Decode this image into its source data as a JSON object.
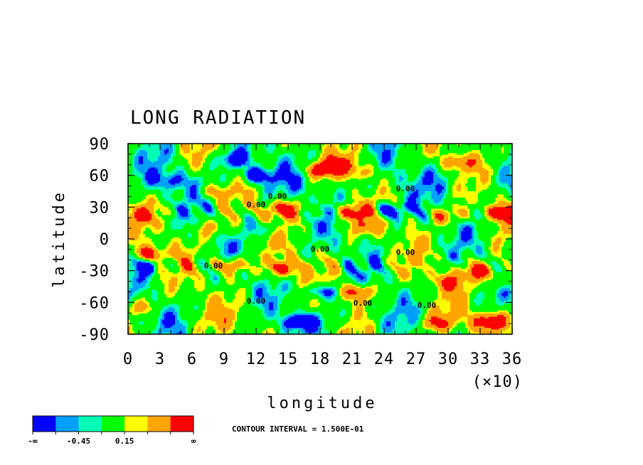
{
  "chart_data": {
    "type": "heatmap",
    "title": "LONG RADIATION",
    "xlabel": "longitude",
    "ylabel": "latitude",
    "x_multiplier": "(×10)",
    "xlim": [
      0,
      36
    ],
    "ylim": [
      -90,
      90
    ],
    "x_ticks": [
      "0",
      "3",
      "6",
      "9",
      "12",
      "15",
      "18",
      "21",
      "24",
      "27",
      "30",
      "33",
      "36"
    ],
    "y_ticks": [
      "90",
      "60",
      "30",
      "0",
      "-30",
      "-60",
      "-90"
    ],
    "contour_interval_text": "CONTOUR INTERVAL = 1.500E-01",
    "contour_labels": [
      {
        "text": "0.00",
        "lon": 14,
        "lat": 38
      },
      {
        "text": "0.00",
        "lon": 12,
        "lat": 30
      },
      {
        "text": "0.00",
        "lon": 26,
        "lat": 45
      },
      {
        "text": "0.00",
        "lon": 18,
        "lat": -12
      },
      {
        "text": "0.00",
        "lon": 26,
        "lat": -15
      },
      {
        "text": "0.00",
        "lon": 8,
        "lat": -28
      },
      {
        "text": "0.00",
        "lon": 12,
        "lat": -61
      },
      {
        "text": "0.00",
        "lon": 22,
        "lat": -63
      },
      {
        "text": "0.00",
        "lon": 28,
        "lat": -65
      }
    ],
    "colorbar": {
      "colors": [
        "#0000ff",
        "#00a0ff",
        "#00ffb4",
        "#00ff00",
        "#ffff00",
        "#ffa500",
        "#ff0000"
      ],
      "labels": [
        "-∞",
        "-0.45",
        "0.15",
        "∞"
      ]
    },
    "features": [
      {
        "lon": 18,
        "lat": 65,
        "value": 0.9
      },
      {
        "lon": 20,
        "lat": 70,
        "value": 0.55
      },
      {
        "lon": 22,
        "lat": 62,
        "value": 0.45
      },
      {
        "lon": 31,
        "lat": 72,
        "value": 0.55
      },
      {
        "lon": 10,
        "lat": 75,
        "value": -0.75
      },
      {
        "lon": 12,
        "lat": 60,
        "value": -0.75
      },
      {
        "lon": 4,
        "lat": 55,
        "value": -0.4
      },
      {
        "lon": 8,
        "lat": 45,
        "value": 0.45
      },
      {
        "lon": 14.5,
        "lat": 28,
        "value": 0.85
      },
      {
        "lon": 21,
        "lat": 25,
        "value": 0.9
      },
      {
        "lon": 35,
        "lat": 25,
        "value": 0.85
      },
      {
        "lon": 30,
        "lat": 22,
        "value": 0.6
      },
      {
        "lon": 1,
        "lat": 22,
        "value": 0.5
      },
      {
        "lon": 24.5,
        "lat": 27,
        "value": -0.8
      },
      {
        "lon": 2,
        "lat": -15,
        "value": 0.85
      },
      {
        "lon": 9.5,
        "lat": -25,
        "value": 0.85
      },
      {
        "lon": 14.5,
        "lat": -28,
        "value": 0.85
      },
      {
        "lon": 33,
        "lat": -30,
        "value": 0.9
      },
      {
        "lon": 30,
        "lat": -40,
        "value": 0.55
      },
      {
        "lon": 35,
        "lat": -40,
        "value": 0.5
      },
      {
        "lon": 21.5,
        "lat": -50,
        "value": 0.85
      },
      {
        "lon": 18,
        "lat": -50,
        "value": -0.8
      },
      {
        "lon": 16,
        "lat": -78,
        "value": -0.8
      },
      {
        "lon": 34,
        "lat": -78,
        "value": 0.9
      },
      {
        "lon": 29,
        "lat": -80,
        "value": 0.5
      },
      {
        "lon": 1,
        "lat": -65,
        "value": 0.45
      },
      {
        "lon": 2,
        "lat": -25,
        "value": -0.55
      },
      {
        "lon": 8,
        "lat": 10,
        "value": 0.4
      },
      {
        "lon": 22,
        "lat": 10,
        "value": 0.4
      },
      {
        "lon": 13,
        "lat": 10,
        "value": -0.4
      }
    ]
  }
}
